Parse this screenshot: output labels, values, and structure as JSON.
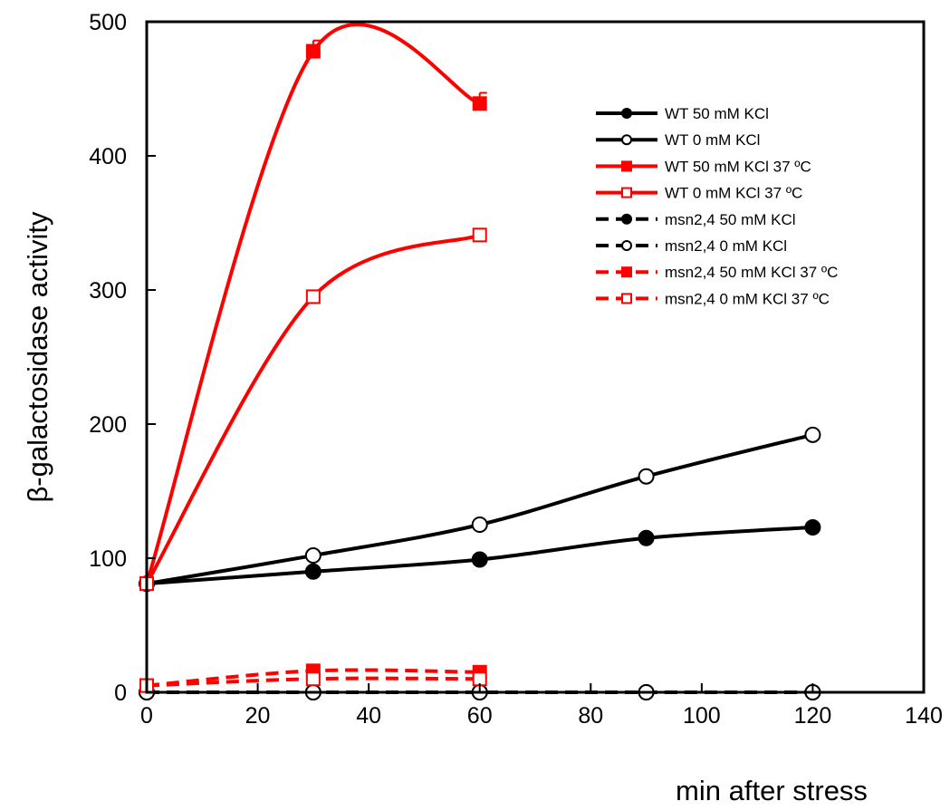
{
  "chart_data": {
    "type": "line",
    "title": "",
    "xlabel": "min after stress",
    "ylabel": "β-galactosidase activity",
    "xlim": [
      0,
      140
    ],
    "ylim": [
      0,
      500
    ],
    "xticks": [
      "0",
      "20",
      "40",
      "60",
      "80",
      "100",
      "120",
      "140"
    ],
    "yticks": [
      "0",
      "100",
      "200",
      "300",
      "400",
      "500"
    ],
    "grid": false,
    "legend_position": "top-right",
    "series": [
      {
        "name": "WT 50 mM KCl",
        "x": [
          0,
          30,
          60,
          90,
          120
        ],
        "y": [
          81,
          90,
          99,
          115,
          123
        ],
        "color": "#000000",
        "dashed": false,
        "marker": "circle",
        "filled": true
      },
      {
        "name": "WT 0 mM KCl",
        "x": [
          0,
          30,
          60,
          90,
          120
        ],
        "y": [
          81,
          102,
          125,
          161,
          192
        ],
        "color": "#000000",
        "dashed": false,
        "marker": "circle",
        "filled": false
      },
      {
        "name": "WT 50 mM KCl 37 ºC",
        "x": [
          0,
          30,
          60
        ],
        "y": [
          81,
          478,
          439
        ],
        "errors": [
          0,
          8,
          8
        ],
        "color": "#ff0000",
        "dashed": false,
        "marker": "square",
        "filled": true
      },
      {
        "name": "WT 0 mM KCl 37 ºC",
        "x": [
          0,
          30,
          60
        ],
        "y": [
          81,
          295,
          341
        ],
        "color": "#ff0000",
        "dashed": false,
        "marker": "square",
        "filled": false
      },
      {
        "name": "msn2,4 50 mM KCl",
        "x": [
          0,
          30,
          60,
          90,
          120
        ],
        "y": [
          0,
          0,
          0,
          0,
          0
        ],
        "color": "#000000",
        "dashed": true,
        "marker": "circle",
        "filled": true
      },
      {
        "name": "msn2,4 0 mM KCl",
        "x": [
          0,
          30,
          60,
          90,
          120
        ],
        "y": [
          0,
          0,
          0,
          0,
          0
        ],
        "color": "#000000",
        "dashed": true,
        "marker": "circle",
        "filled": false
      },
      {
        "name": "msn2,4 50 mM KCl 37 ºC",
        "x": [
          0,
          30,
          60
        ],
        "y": [
          5,
          16,
          15
        ],
        "color": "#ff0000",
        "dashed": true,
        "marker": "square",
        "filled": true
      },
      {
        "name": "msn2,4 0 mM KCl 37 ºC",
        "x": [
          0,
          30,
          60
        ],
        "y": [
          5,
          10,
          10
        ],
        "color": "#ff0000",
        "dashed": true,
        "marker": "square",
        "filled": false
      }
    ]
  }
}
